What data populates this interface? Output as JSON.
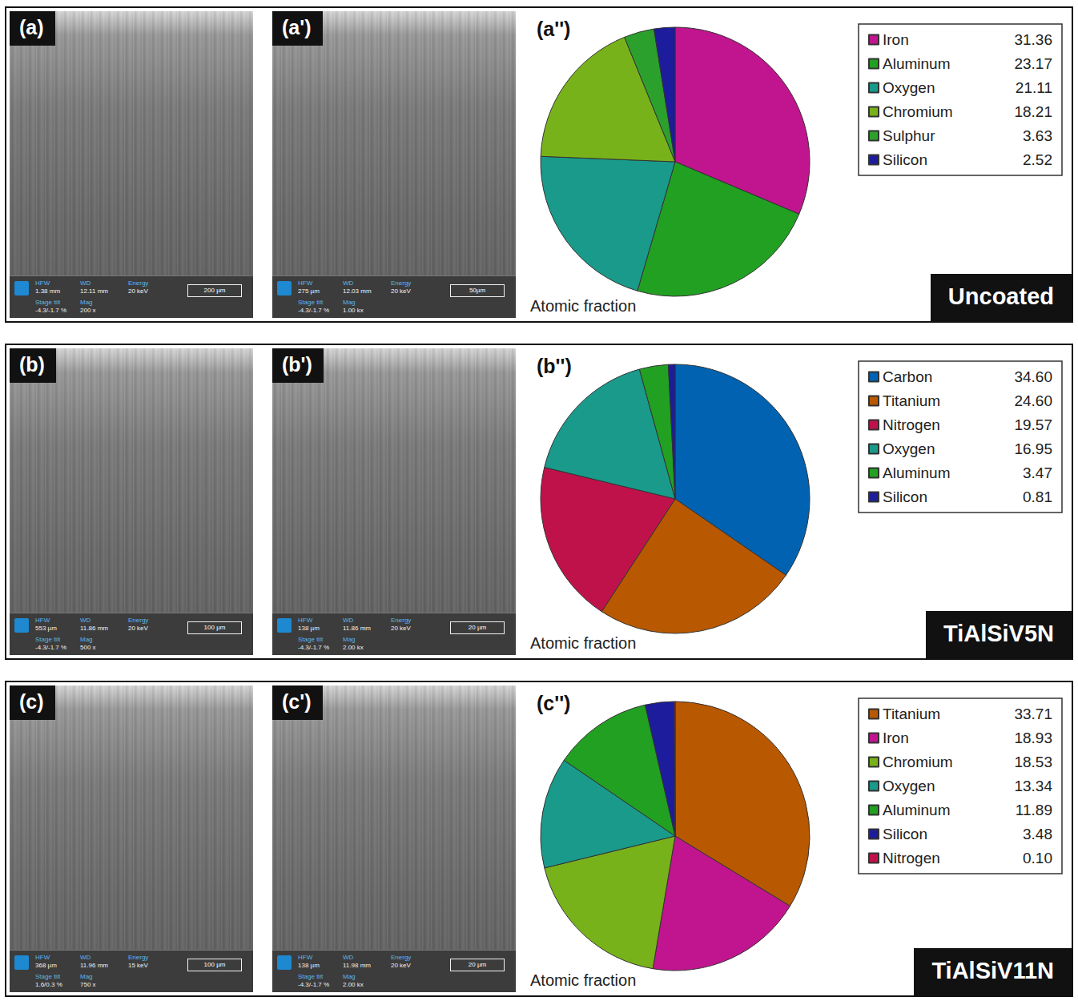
{
  "chart_data": [
    {
      "type": "pie",
      "panel_label": "(a'')",
      "caption": "Atomic fraction",
      "sample_label": "Uncoated",
      "categories": [
        "Iron",
        "Aluminum",
        "Oxygen",
        "Chromium",
        "Sulphur",
        "Silicon"
      ],
      "values": [
        31.36,
        23.17,
        21.11,
        18.21,
        3.63,
        2.52
      ],
      "value_labels": [
        "31.36",
        "23.17",
        "21.11",
        "18.21",
        "3.63",
        "2.52"
      ],
      "colors": [
        "#c0158e",
        "#22a022",
        "#1a9a8a",
        "#78b21a",
        "#2ca02c",
        "#1c1c9c"
      ],
      "legend": "top right"
    },
    {
      "type": "pie",
      "panel_label": "(b'')",
      "caption": "Atomic fraction",
      "sample_label": "TiAlSiV5N",
      "categories": [
        "Carbon",
        "Titanium",
        "Nitrogen",
        "Oxygen",
        "Aluminum",
        "Silicon"
      ],
      "values": [
        34.6,
        24.6,
        19.57,
        16.95,
        3.47,
        0.81
      ],
      "value_labels": [
        "34.60",
        "24.60",
        "19.57",
        "16.95",
        "3.47",
        "0.81"
      ],
      "colors": [
        "#0062b0",
        "#b85800",
        "#c0124a",
        "#1a9a8a",
        "#22a022",
        "#1c1c9c"
      ],
      "legend": "top right"
    },
    {
      "type": "pie",
      "panel_label": "(c'')",
      "caption": "Atomic fraction",
      "sample_label": "TiAlSiV11N",
      "categories": [
        "Titanium",
        "Iron",
        "Chromium",
        "Oxygen",
        "Aluminum",
        "Silicon",
        "Nitrogen"
      ],
      "values": [
        33.71,
        18.93,
        18.53,
        13.34,
        11.89,
        3.48,
        0.1
      ],
      "value_labels": [
        "33.71",
        "18.93",
        "18.53",
        "13.34",
        "11.89",
        "3.48",
        "0.10"
      ],
      "colors": [
        "#b85800",
        "#c0158e",
        "#78b21a",
        "#1a9a8a",
        "#22a022",
        "#1c1c9c",
        "#c0124a"
      ],
      "legend": "top right"
    }
  ],
  "sem_panels": {
    "field_labels": [
      "HFW",
      "WD",
      "Energy",
      "Stage tilt",
      "Mag"
    ],
    "rows": [
      [
        {
          "label": "(a)",
          "HFW": "1.38 mm",
          "WD": "12.11 mm",
          "Energy": "20 keV",
          "Stage tilt": "-4.3/-1.7 %",
          "Mag": "200 x",
          "scale_bar": "200 µm"
        },
        {
          "label": "(a')",
          "HFW": "275 µm",
          "WD": "12.03 mm",
          "Energy": "20 keV",
          "Stage tilt": "-4.3/-1.7 %",
          "Mag": "1.00 kx",
          "scale_bar": "50µm"
        }
      ],
      [
        {
          "label": "(b)",
          "HFW": "553 µm",
          "WD": "11.86 mm",
          "Energy": "20 keV",
          "Stage tilt": "-4.3/-1.7 %",
          "Mag": "500 x",
          "scale_bar": "100 µm"
        },
        {
          "label": "(b')",
          "HFW": "138 µm",
          "WD": "11.86 mm",
          "Energy": "20 keV",
          "Stage tilt": "-4.3/-1.7 %",
          "Mag": "2.00 kx",
          "scale_bar": "20 µm"
        }
      ],
      [
        {
          "label": "(c)",
          "HFW": "368 µm",
          "WD": "11.96 mm",
          "Energy": "15 keV",
          "Stage tilt": "1.6/0.3 %",
          "Mag": "750 x",
          "scale_bar": "100 µm"
        },
        {
          "label": "(c')",
          "HFW": "138 µm",
          "WD": "11.98 mm",
          "Energy": "20 keV",
          "Stage tilt": "-4.3/-1.7 %",
          "Mag": "2.00 kx",
          "scale_bar": "20 µm"
        }
      ]
    ]
  }
}
